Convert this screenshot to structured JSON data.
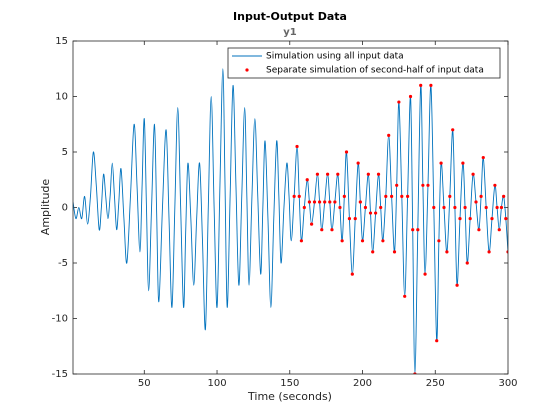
{
  "chart_data": {
    "type": "line",
    "title": "Input-Output Data",
    "subtitle": "y1",
    "xlabel": "Time (seconds)",
    "ylabel": "Amplitude",
    "xlim": [
      1,
      300
    ],
    "xticks": [
      50,
      100,
      150,
      200,
      250,
      300
    ],
    "ylim": [
      -15,
      15
    ],
    "yticks": [
      -15,
      -10,
      -5,
      0,
      5,
      10,
      15
    ],
    "legend": "northeast",
    "series": [
      {
        "name": "Simulation using all input data",
        "color": "#0072bd",
        "style": "line",
        "x": [
          1,
          3,
          5,
          7,
          9,
          11,
          13,
          15,
          17,
          19,
          20.5,
          22,
          23.5,
          25,
          26.5,
          28,
          29.5,
          31,
          32.5,
          34,
          36,
          38,
          40.5,
          43,
          45,
          47,
          48.5,
          50,
          51.5,
          53,
          55,
          57,
          58.5,
          60,
          62.5,
          65,
          67,
          69,
          71,
          73,
          75,
          77,
          78.5,
          80,
          82,
          84,
          86,
          88,
          90,
          92,
          94,
          96,
          98,
          100,
          102,
          104,
          105.5,
          107,
          109,
          111,
          113,
          115,
          117,
          119,
          120.5,
          122,
          124,
          126,
          128,
          130,
          131.5,
          133,
          135,
          137,
          139,
          141,
          142.5,
          144,
          146,
          148,
          149.5,
          151,
          153,
          155,
          156.5,
          158,
          160,
          162,
          163.5,
          165,
          167,
          169,
          170.5,
          172,
          174,
          176,
          177.5,
          179,
          181,
          183,
          184.5,
          186,
          187.5,
          189,
          191,
          193,
          195,
          197,
          198.5,
          200,
          202,
          204,
          205.5,
          207,
          209,
          211,
          212.5,
          214,
          216,
          218,
          220,
          222,
          223.5,
          225,
          227,
          229,
          231,
          233,
          234.5,
          236,
          238,
          240,
          241.5,
          243,
          245,
          247,
          249,
          251,
          252.5,
          254,
          256,
          258,
          260,
          262,
          263.5,
          265,
          267,
          269,
          270.5,
          272,
          274,
          276,
          278,
          280,
          281.5,
          283,
          285,
          287,
          289,
          291,
          292.5,
          294,
          295.5,
          297,
          298.5,
          300
        ],
        "values": [
          0.5,
          -1,
          0,
          -1,
          1,
          -1.5,
          1,
          5,
          2,
          -2,
          0,
          3,
          1,
          -1,
          1,
          4,
          1,
          -2,
          0.5,
          3.5,
          -1,
          -5,
          1,
          7.5,
          2,
          -4,
          2,
          8,
          0,
          -7.5,
          0,
          7.5,
          -0.5,
          -8.5,
          0,
          7,
          -1,
          -9,
          0,
          9,
          0,
          -9,
          -2,
          4,
          -1,
          -7,
          -1,
          4,
          -3,
          -11,
          0,
          10,
          0,
          -9,
          2,
          12.5,
          2,
          -9,
          1,
          11,
          2,
          -7,
          1,
          9,
          1,
          -7,
          1,
          8,
          1,
          -6,
          0,
          6,
          -1,
          -9,
          -1,
          6,
          1,
          -5,
          0,
          4,
          1,
          -3,
          1,
          5.5,
          1,
          -3,
          0,
          2.5,
          0.5,
          -1.5,
          0.5,
          3,
          0.5,
          -2,
          0.5,
          3,
          0.5,
          -2,
          0.5,
          3,
          0,
          -3,
          1,
          5,
          -1,
          -6,
          -1,
          4,
          0.5,
          -3,
          0,
          3,
          -0.5,
          -4,
          -0.5,
          3,
          0,
          -3,
          1,
          6.5,
          1,
          -4,
          2,
          9.5,
          1,
          -8,
          1,
          10,
          -2,
          -15,
          -2,
          11,
          2,
          -6,
          2,
          11,
          0,
          -12,
          -3,
          4,
          0,
          -4,
          1,
          7,
          0,
          -7,
          -1,
          4,
          0,
          -5,
          -1,
          3,
          0.5,
          -2,
          1,
          4.5,
          0,
          -4,
          -1,
          2,
          0,
          -2,
          0,
          1,
          -1,
          -4
        ]
      },
      {
        "name": "Separate simulation of second-half of input data",
        "color": "#ff0000",
        "style": "markers",
        "x": [
          153,
          155,
          156.5,
          158,
          160,
          162,
          163.5,
          165,
          167,
          169,
          170.5,
          172,
          174,
          176,
          177.5,
          179,
          181,
          183,
          184.5,
          186,
          187.5,
          189,
          191,
          193,
          195,
          197,
          198.5,
          200,
          202,
          204,
          205.5,
          207,
          209,
          211,
          212.5,
          214,
          216,
          218,
          220,
          222,
          223.5,
          225,
          227,
          229,
          231,
          233,
          234.5,
          236,
          238,
          240,
          241.5,
          243,
          245,
          247,
          249,
          251,
          252.5,
          254,
          256,
          258,
          260,
          262,
          263.5,
          265,
          267,
          269,
          270.5,
          272,
          274,
          276,
          278,
          280,
          281.5,
          283,
          285,
          287,
          289,
          291,
          292.5,
          294,
          295.5,
          297,
          298.5,
          300
        ],
        "values": [
          1,
          5.5,
          1,
          -3,
          0,
          2.5,
          0.5,
          -1.5,
          0.5,
          3,
          0.5,
          -2,
          0.5,
          3,
          0.5,
          -2,
          0.5,
          3,
          0,
          -3,
          1,
          5,
          -1,
          -6,
          -1,
          4,
          0.5,
          -3,
          0,
          3,
          -0.5,
          -4,
          -0.5,
          3,
          0,
          -3,
          1,
          6.5,
          1,
          -4,
          2,
          9.5,
          1,
          -8,
          1,
          10,
          -2,
          -15,
          -2,
          11,
          2,
          -6,
          2,
          11,
          0,
          -12,
          -3,
          4,
          0,
          -4,
          1,
          7,
          0,
          -7,
          -1,
          4,
          0,
          -5,
          -1,
          3,
          0.5,
          -2,
          1,
          4.5,
          0,
          -4,
          -1,
          2,
          0,
          -2,
          0,
          1,
          -1,
          -4
        ]
      }
    ]
  }
}
